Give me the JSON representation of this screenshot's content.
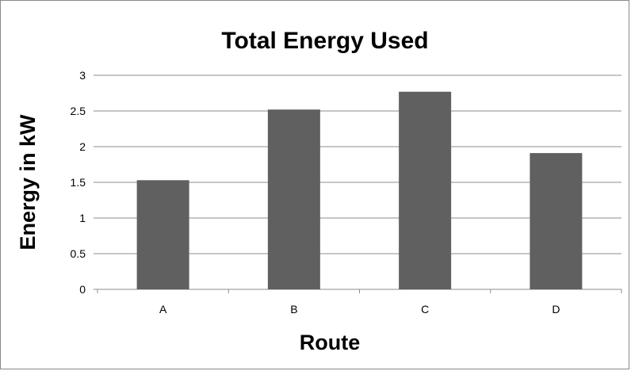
{
  "chart_data": {
    "type": "bar",
    "title": "Total Energy Used",
    "xlabel": "Route",
    "ylabel": "Energy in kW",
    "categories": [
      "A",
      "B",
      "C",
      "D"
    ],
    "values": [
      1.53,
      2.52,
      2.77,
      1.91
    ],
    "ylim": [
      0,
      3
    ],
    "yticks": [
      "0",
      "0.5",
      "1",
      "1.5",
      "2",
      "2.5",
      "3"
    ],
    "grid": true,
    "legend": "none",
    "bar_color": "#606060",
    "grid_color": "#8c8c8c"
  }
}
